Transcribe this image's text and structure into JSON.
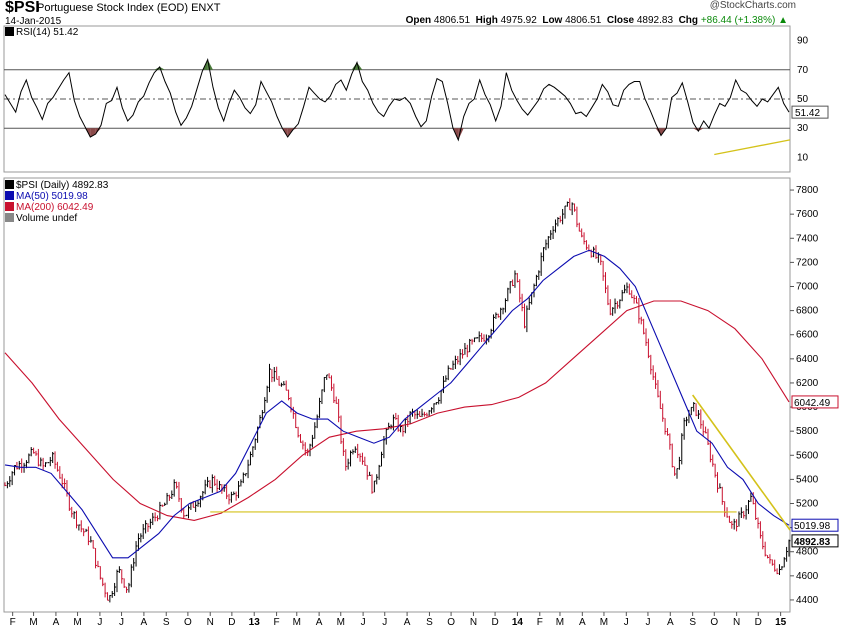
{
  "header": {
    "symbol": "$PSI",
    "name": "Portuguese Stock Index (EOD)  ENXT",
    "date": "14-Jan-2015",
    "brand": "@StockCharts.com",
    "open_label": "Open",
    "open": "4806.51",
    "high_label": "High",
    "high": "4975.92",
    "low_label": "Low",
    "low": "4806.51",
    "close_label": "Close",
    "close": "4892.83",
    "chg_label": "Chg",
    "chg": "+86.44 (+1.38%)"
  },
  "colors": {
    "price": "#000000",
    "down": "#c8102e",
    "ma50": "#0b0bb0",
    "ma200": "#c8102e",
    "trend": "#d4c21a",
    "rsi_over": "#4a7a3a",
    "rsi_under": "#8b4a4a"
  },
  "chart_data": [
    {
      "type": "line",
      "title": "RSI(14) 51.42",
      "legend": "RSI(14) 51.42",
      "ylim": [
        0,
        100
      ],
      "yticks": [
        10,
        30,
        50,
        70,
        90
      ],
      "ytick_labels": [
        "10",
        "30",
        "50",
        "70",
        "90"
      ],
      "reference_lines": [
        30,
        50,
        70
      ],
      "last_value_label": "51.42",
      "rsi": [
        53,
        47,
        41,
        55,
        63,
        51,
        44,
        36,
        47,
        51,
        57,
        63,
        68,
        49,
        38,
        31,
        24,
        26,
        32,
        47,
        49,
        58,
        44,
        35,
        39,
        48,
        52,
        61,
        68,
        72,
        62,
        54,
        41,
        32,
        37,
        45,
        57,
        69,
        77,
        58,
        44,
        35,
        47,
        56,
        51,
        44,
        40,
        46,
        62,
        55,
        48,
        38,
        30,
        24,
        29,
        33,
        45,
        58,
        54,
        50,
        48,
        52,
        60,
        63,
        56,
        67,
        75,
        62,
        56,
        47,
        41,
        38,
        45,
        50,
        49,
        51,
        47,
        38,
        31,
        35,
        52,
        64,
        62,
        47,
        30,
        22,
        38,
        47,
        50,
        63,
        53,
        46,
        35,
        45,
        68,
        56,
        49,
        43,
        39,
        44,
        49,
        57,
        60,
        58,
        55,
        52,
        47,
        40,
        41,
        38,
        44,
        50,
        60,
        55,
        46,
        45,
        56,
        60,
        62,
        62,
        50,
        42,
        33,
        25,
        30,
        51,
        54,
        61,
        48,
        34,
        28,
        35,
        30,
        39,
        47,
        45,
        51,
        63,
        56,
        54,
        49,
        45,
        50,
        48,
        53,
        58,
        47,
        41
      ],
      "trend_line": {
        "x": [
          "2014-10-01",
          "2015-01-14"
        ],
        "y": [
          12,
          22
        ]
      }
    },
    {
      "type": "line",
      "title": "$PSI (Daily) 4892.83",
      "x_range": [
        "2012-01-20",
        "2015-01-14"
      ],
      "ylim": [
        4300,
        7900
      ],
      "yticks": [
        4400,
        4600,
        4800,
        5000,
        5200,
        5400,
        5600,
        5800,
        6000,
        6200,
        6400,
        6600,
        6800,
        7000,
        7200,
        7400,
        7600,
        7800
      ],
      "ytick_labels": [
        "4400",
        "4600",
        "4800",
        "5000",
        "5200",
        "5400",
        "5600",
        "5800",
        "6000",
        "6200",
        "6400",
        "6600",
        "6800",
        "7000",
        "7200",
        "7400",
        "7600",
        "7800"
      ],
      "xtick_labels": [
        "F",
        "M",
        "A",
        "M",
        "J",
        "J",
        "A",
        "S",
        "O",
        "N",
        "D",
        "13",
        "F",
        "M",
        "A",
        "M",
        "J",
        "J",
        "A",
        "S",
        "O",
        "N",
        "D",
        "14",
        "F",
        "M",
        "A",
        "M",
        "J",
        "J",
        "A",
        "S",
        "O",
        "N",
        "D",
        "15"
      ],
      "xtick_months": [
        "2012-02",
        "2012-03",
        "2012-04",
        "2012-05",
        "2012-06",
        "2012-07",
        "2012-08",
        "2012-09",
        "2012-10",
        "2012-11",
        "2012-12",
        "2013-01",
        "2013-02",
        "2013-03",
        "2013-04",
        "2013-05",
        "2013-06",
        "2013-07",
        "2013-08",
        "2013-09",
        "2013-10",
        "2013-11",
        "2013-12",
        "2014-01",
        "2014-02",
        "2014-03",
        "2014-04",
        "2014-05",
        "2014-06",
        "2014-07",
        "2014-08",
        "2014-09",
        "2014-10",
        "2014-11",
        "2014-12",
        "2015-01"
      ],
      "series": [
        {
          "name": "$PSI (Daily) 4892.83",
          "key": "price",
          "label": "$PSI (Daily) 4892.83",
          "values": [
            5350,
            5500,
            5550,
            5620,
            5500,
            5580,
            5400,
            5150,
            5000,
            4900,
            4600,
            4400,
            4650,
            4480,
            4900,
            5000,
            5100,
            5200,
            5350,
            5100,
            5200,
            5300,
            5400,
            5300,
            5250,
            5350,
            5600,
            5900,
            6300,
            6200,
            6100,
            5800,
            5600,
            5900,
            6300,
            6050,
            5500,
            5700,
            5550,
            5300,
            5700,
            5900,
            5800,
            5950,
            5900,
            6000,
            6100,
            6300,
            6400,
            6500,
            6550,
            6600,
            6750,
            6900,
            7100,
            6700,
            7000,
            7300,
            7500,
            7600,
            7700,
            7400,
            7300,
            7200,
            6800,
            6900,
            7000,
            6800,
            6500,
            6100,
            5800,
            5400,
            5900,
            6000,
            5800,
            5500,
            5200,
            5000,
            5100,
            5250,
            4900,
            4700,
            4650,
            4890
          ]
        },
        {
          "name": "MA(50) 5019.98",
          "key": "ma50",
          "label": "MA(50) 5019.98",
          "last_value_label": "5019.98",
          "values": [
            5520,
            5500,
            5500,
            5450,
            5300,
            5150,
            4950,
            4750,
            4750,
            4850,
            4950,
            5100,
            5200,
            5250,
            5300,
            5450,
            5700,
            5950,
            6050,
            5950,
            5900,
            5900,
            5800,
            5750,
            5700,
            5750,
            5900,
            6000,
            6100,
            6200,
            6350,
            6500,
            6650,
            6800,
            6900,
            7050,
            7150,
            7250,
            7300,
            7250,
            7150,
            7000,
            6700,
            6400,
            6100,
            5800,
            5700,
            5500,
            5400,
            5200,
            5100,
            5019.98
          ]
        },
        {
          "name": "MA(200) 6042.49",
          "key": "ma200",
          "label": "MA(200) 6042.49",
          "last_value_label": "6042.49",
          "values": [
            6450,
            6200,
            5900,
            5650,
            5400,
            5200,
            5100,
            5060,
            5120,
            5250,
            5400,
            5600,
            5750,
            5800,
            5820,
            5860,
            5950,
            6000,
            6020,
            6080,
            6200,
            6400,
            6600,
            6800,
            6880,
            6880,
            6800,
            6650,
            6400,
            6042.49
          ]
        },
        {
          "name": "Volume undef",
          "key": "volume",
          "label": "Volume undef",
          "values": []
        }
      ],
      "annotations": [
        {
          "kind": "trend",
          "x": [
            "2014-09-01",
            "2015-01-14"
          ],
          "y": [
            6100,
            4980
          ]
        },
        {
          "kind": "support",
          "x": [
            "2012-11-01",
            "2014-11-01"
          ],
          "y": [
            5130,
            5130
          ]
        }
      ],
      "last_close_label": "4892.83"
    }
  ]
}
